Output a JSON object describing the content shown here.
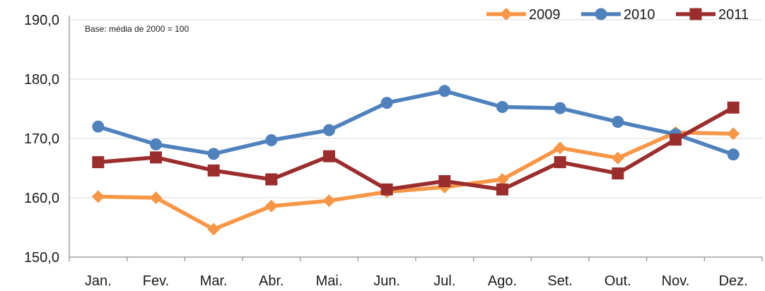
{
  "chart_data": {
    "type": "line",
    "title": "",
    "xlabel": "",
    "ylabel": "",
    "annotation": "Base: média de 2000 = 100",
    "categories": [
      "Jan.",
      "Fev.",
      "Mar.",
      "Abr.",
      "Mai.",
      "Jun.",
      "Jul.",
      "Ago.",
      "Set.",
      "Out.",
      "Nov.",
      "Dez."
    ],
    "ylim": [
      150,
      190
    ],
    "yticks": [
      150,
      160,
      170,
      180,
      190
    ],
    "ytick_labels": [
      "150,0",
      "160,0",
      "170,0",
      "180,0",
      "190,0"
    ],
    "grid": true,
    "legend_position": "top-right",
    "series": [
      {
        "name": "2009",
        "color": "#f79646",
        "marker": "cross",
        "values": [
          160.2,
          160.0,
          154.7,
          158.6,
          159.5,
          161.0,
          161.8,
          163.1,
          168.4,
          166.7,
          171.0,
          170.8
        ]
      },
      {
        "name": "2010",
        "color": "#4f81bd",
        "marker": "circle",
        "values": [
          172.0,
          169.0,
          167.4,
          169.7,
          171.4,
          176.0,
          178.0,
          175.3,
          175.1,
          172.8,
          170.7,
          167.3
        ]
      },
      {
        "name": "2011",
        "color": "#9b2d2d",
        "marker": "square",
        "values": [
          166.0,
          166.8,
          164.6,
          163.1,
          167.0,
          161.4,
          162.8,
          161.4,
          166.0,
          164.1,
          169.8,
          175.2
        ]
      }
    ]
  }
}
